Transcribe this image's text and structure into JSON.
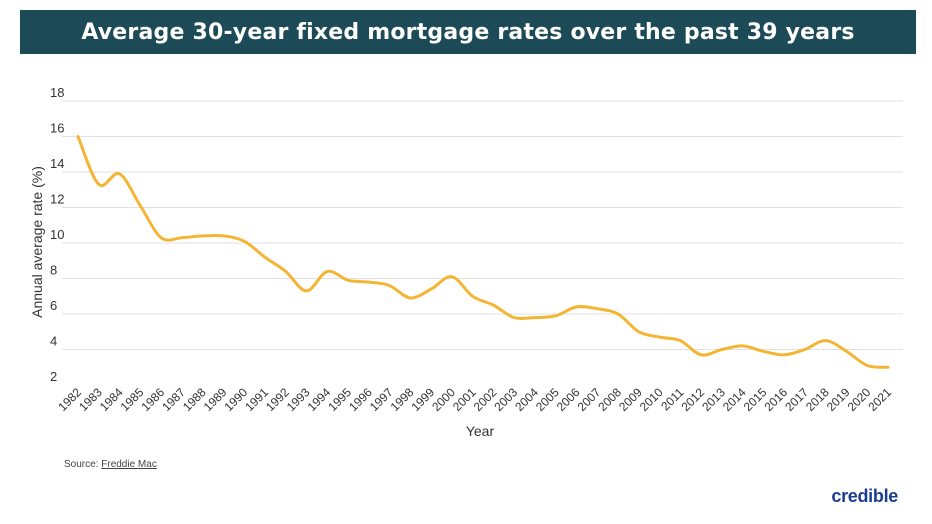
{
  "header": {
    "title": "Average 30-year fixed mortgage rates over the past 39 years"
  },
  "footer": {
    "source_prefix": "Source: ",
    "source_link": "Freddie Mac",
    "brand": "credible"
  },
  "colors": {
    "title_bg": "#1c4a57",
    "line": "#f4b534",
    "grid": "#e2e2e2",
    "brand": "#1a3d8f"
  },
  "chart_data": {
    "type": "line",
    "title": "Average 30-year fixed mortgage rates over the past 39 years",
    "xlabel": "Year",
    "ylabel": "Annual average rate (%)",
    "ylim": [
      2,
      18
    ],
    "yticks": [
      2,
      4,
      6,
      8,
      10,
      12,
      14,
      16,
      18
    ],
    "grid": true,
    "categories": [
      "1982",
      "1983",
      "1984",
      "1985",
      "1986",
      "1987",
      "1988",
      "1989",
      "1990",
      "1991",
      "1992",
      "1993",
      "1994",
      "1995",
      "1996",
      "1997",
      "1998",
      "1999",
      "2000",
      "2001",
      "2002",
      "2003",
      "2004",
      "2005",
      "2006",
      "2007",
      "2008",
      "2009",
      "2010",
      "2011",
      "2012",
      "2013",
      "2014",
      "2015",
      "2016",
      "2017",
      "2018",
      "2019",
      "2020",
      "2021"
    ],
    "series": [
      {
        "values": [
          16.0,
          13.3,
          13.9,
          12.1,
          10.3,
          10.3,
          10.4,
          10.4,
          10.1,
          9.2,
          8.4,
          7.3,
          8.4,
          7.9,
          7.8,
          7.6,
          6.9,
          7.4,
          8.1,
          7.0,
          6.5,
          5.8,
          5.8,
          5.9,
          6.4,
          6.3,
          6.0,
          5.0,
          4.7,
          4.5,
          3.7,
          4.0,
          4.2,
          3.9,
          3.7,
          4.0,
          4.5,
          3.9,
          3.1,
          3.0
        ]
      }
    ]
  }
}
